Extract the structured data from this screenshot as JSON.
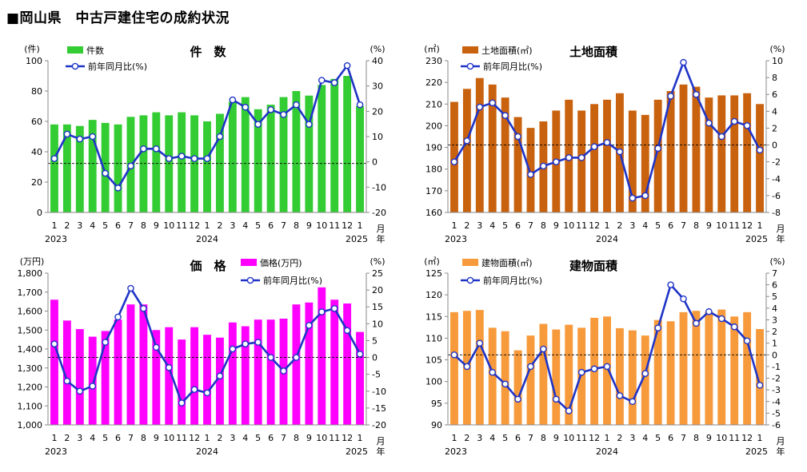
{
  "page_title": "■岡山県　中古戸建住宅の成約状況",
  "chart_data": [
    {
      "type": "bar",
      "title": "件　数",
      "y_unit": "(件)",
      "y2_unit": "(%)",
      "bar_legend": "件数",
      "line_legend": "前年同月比(%)",
      "bar_color": "#33cc33",
      "line_color": "#1f34c7",
      "ylim": [
        0,
        100
      ],
      "yticks": [
        "0",
        "20",
        "40",
        "60",
        "80",
        "100"
      ],
      "y2lim": [
        -20,
        42
      ],
      "y2ticks": [
        "-20",
        "-10",
        "0",
        "10",
        "20",
        "30",
        "40"
      ],
      "categories": [
        "1",
        "2",
        "3",
        "4",
        "5",
        "6",
        "7",
        "8",
        "9",
        "10",
        "11",
        "12",
        "1",
        "2",
        "3",
        "4",
        "5",
        "6",
        "7",
        "8",
        "9",
        "10",
        "11",
        "12",
        "1"
      ],
      "year_labels": [
        "2023",
        "2024",
        "2025"
      ],
      "x_unit": "月\n年",
      "values": [
        58,
        58,
        57,
        61,
        59,
        58,
        63,
        64,
        66,
        64,
        66,
        64,
        60,
        65,
        73,
        76,
        68,
        71,
        76,
        80,
        77,
        84,
        88,
        90,
        70
      ],
      "yoy": [
        2,
        12,
        10,
        11,
        -4,
        -10,
        -1,
        6,
        6,
        2,
        3,
        2,
        2,
        11,
        26,
        23,
        16,
        22,
        20,
        24,
        16,
        34,
        33,
        40,
        24
      ]
    },
    {
      "type": "bar",
      "title": "土地面積",
      "y_unit": "(㎡)",
      "y2_unit": "(%)",
      "bar_legend": "土地面積(㎡)",
      "line_legend": "前年同月比(%)",
      "bar_color": "#c9620e",
      "line_color": "#1f34c7",
      "ylim": [
        160,
        230
      ],
      "yticks": [
        "160",
        "170",
        "180",
        "190",
        "200",
        "210",
        "220",
        "230"
      ],
      "y2lim": [
        -8,
        10
      ],
      "y2ticks": [
        "-8",
        "-6",
        "-4",
        "-2",
        "0",
        "2",
        "4",
        "6",
        "8",
        "10"
      ],
      "categories": [
        "1",
        "2",
        "3",
        "4",
        "5",
        "6",
        "7",
        "8",
        "9",
        "10",
        "11",
        "12",
        "1",
        "2",
        "3",
        "4",
        "5",
        "6",
        "7",
        "8",
        "9",
        "10",
        "11",
        "12",
        "1"
      ],
      "year_labels": [
        "2023",
        "2024",
        "2025"
      ],
      "x_unit": "月\n年",
      "values": [
        211,
        217,
        222,
        219,
        213,
        204,
        199,
        202,
        207,
        212,
        207,
        210,
        212,
        215,
        207,
        205,
        212,
        216,
        219,
        218,
        213,
        214,
        214,
        215,
        210
      ],
      "yoy": [
        -2,
        0.5,
        4.5,
        5,
        3.5,
        1,
        -3.5,
        -2.5,
        -2,
        -1.5,
        -1.5,
        -0.2,
        0.3,
        -0.8,
        -6.3,
        -6,
        -0.4,
        5.8,
        9.8,
        6,
        2.6,
        1,
        2.8,
        2.3,
        -0.6
      ]
    },
    {
      "type": "bar",
      "title": "価　格",
      "y_unit": "(万円)",
      "y2_unit": "(%)",
      "bar_legend": "価格(万円)",
      "line_legend": "前年同月比(%)",
      "bar_color": "#ff00ff",
      "line_color": "#1f34c7",
      "ylim": [
        1000,
        1800
      ],
      "yticks": [
        "1,000",
        "1,100",
        "1,200",
        "1,300",
        "1,400",
        "1,500",
        "1,600",
        "1,700",
        "1,800"
      ],
      "y2lim": [
        -20,
        25
      ],
      "y2ticks": [
        "-20",
        "-15",
        "-10",
        "-5",
        "0",
        "5",
        "10",
        "15",
        "20",
        "25"
      ],
      "categories": [
        "1",
        "2",
        "3",
        "4",
        "5",
        "6",
        "7",
        "8",
        "9",
        "10",
        "11",
        "12",
        "1",
        "2",
        "3",
        "4",
        "5",
        "6",
        "7",
        "8",
        "9",
        "10",
        "11",
        "12",
        "1"
      ],
      "year_labels": [
        "2023",
        "2024",
        "2025"
      ],
      "x_unit": "月\n年",
      "values": [
        1660,
        1550,
        1505,
        1465,
        1495,
        1555,
        1635,
        1635,
        1500,
        1515,
        1450,
        1515,
        1475,
        1460,
        1540,
        1520,
        1555,
        1555,
        1560,
        1635,
        1645,
        1725,
        1660,
        1640,
        1490
      ],
      "yoy": [
        4,
        -7,
        -10,
        -8.5,
        4.5,
        12,
        20.5,
        14.5,
        3,
        -3,
        -13.5,
        -9.5,
        -10.5,
        -5.5,
        2.5,
        4,
        4.5,
        0,
        -4,
        0,
        9.5,
        13.5,
        14.5,
        8,
        1
      ]
    },
    {
      "type": "bar",
      "title": "建物面積",
      "y_unit": "(㎡)",
      "y2_unit": "(%)",
      "bar_legend": "建物面積(㎡)",
      "line_legend": "前年同月比(%)",
      "bar_color": "#f79a3b",
      "line_color": "#1f34c7",
      "ylim": [
        90,
        125
      ],
      "yticks": [
        "90",
        "95",
        "100",
        "105",
        "110",
        "115",
        "120",
        "125"
      ],
      "y2lim": [
        -6,
        7
      ],
      "y2ticks": [
        "-6",
        "-5",
        "-4",
        "-3",
        "-2",
        "-1",
        "0",
        "1",
        "2",
        "3",
        "4",
        "5",
        "6",
        "7"
      ],
      "categories": [
        "1",
        "2",
        "3",
        "4",
        "5",
        "6",
        "7",
        "8",
        "9",
        "10",
        "11",
        "12",
        "1",
        "2",
        "3",
        "4",
        "5",
        "6",
        "7",
        "8",
        "9",
        "10",
        "11",
        "12",
        "1"
      ],
      "year_labels": [
        "2023",
        "2024",
        "2025"
      ],
      "x_unit": "月\n年",
      "values": [
        116,
        116.3,
        116.5,
        112.4,
        111.6,
        107.2,
        110.6,
        113.3,
        112,
        113.1,
        112.4,
        114.7,
        115,
        112.3,
        111.8,
        110.6,
        114.2,
        113.9,
        116,
        116.3,
        116.1,
        116.6,
        115,
        116,
        112.1
      ],
      "yoy": [
        0,
        -1,
        1,
        -1.5,
        -2.5,
        -3.8,
        -1,
        0.5,
        -3.8,
        -4.8,
        -1.5,
        -1.2,
        -1,
        -3.5,
        -4,
        -1.6,
        2.3,
        6,
        4.8,
        2.7,
        3.7,
        3.1,
        2.4,
        1.2,
        -2.6
      ]
    }
  ]
}
